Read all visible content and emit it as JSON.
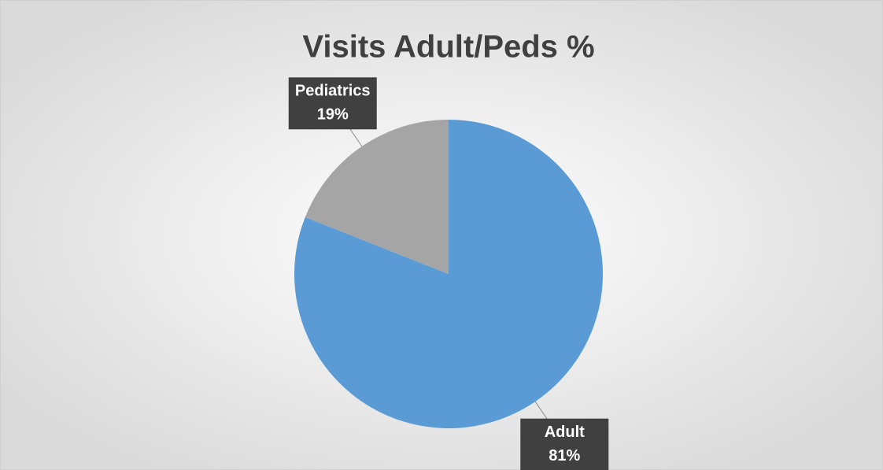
{
  "chart_data": {
    "type": "pie",
    "title": "Visits Adult/Peds %",
    "categories": [
      "Adult",
      "Pediatrics"
    ],
    "values": [
      81,
      19
    ],
    "value_labels": [
      "81%",
      "19%"
    ],
    "colors": [
      "#5b9bd5",
      "#a5a5a5"
    ]
  }
}
